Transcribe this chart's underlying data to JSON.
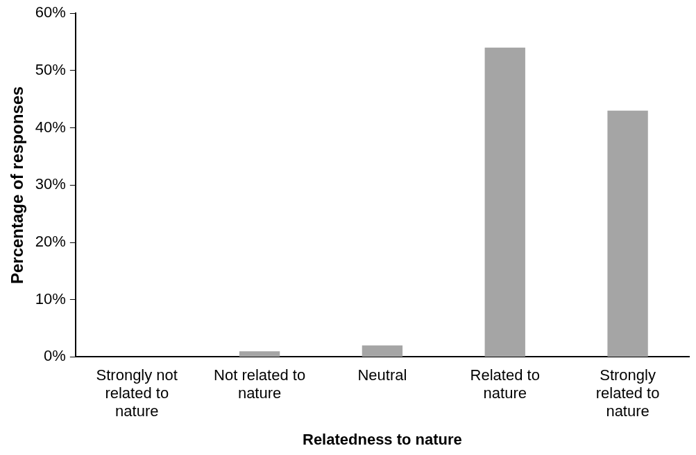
{
  "chart_data": {
    "type": "bar",
    "xlabel": "Relatedness to nature",
    "ylabel": "Percentage of responses",
    "categories": [
      "Strongly not related to nature",
      "Not related to nature",
      "Neutral",
      "Related to nature",
      "Strongly related to nature"
    ],
    "values": [
      0,
      1,
      2,
      54,
      43
    ],
    "color": "#a5a5a5",
    "ylim": [
      0,
      60
    ],
    "yticks": [
      {
        "value": 0,
        "label": "0%"
      },
      {
        "value": 10,
        "label": "10%"
      },
      {
        "value": 20,
        "label": "20%"
      },
      {
        "value": 30,
        "label": "30%"
      },
      {
        "value": 40,
        "label": "40%"
      },
      {
        "value": 50,
        "label": "50%"
      },
      {
        "value": 60,
        "label": "60%"
      }
    ],
    "grid": false,
    "legend": false
  }
}
